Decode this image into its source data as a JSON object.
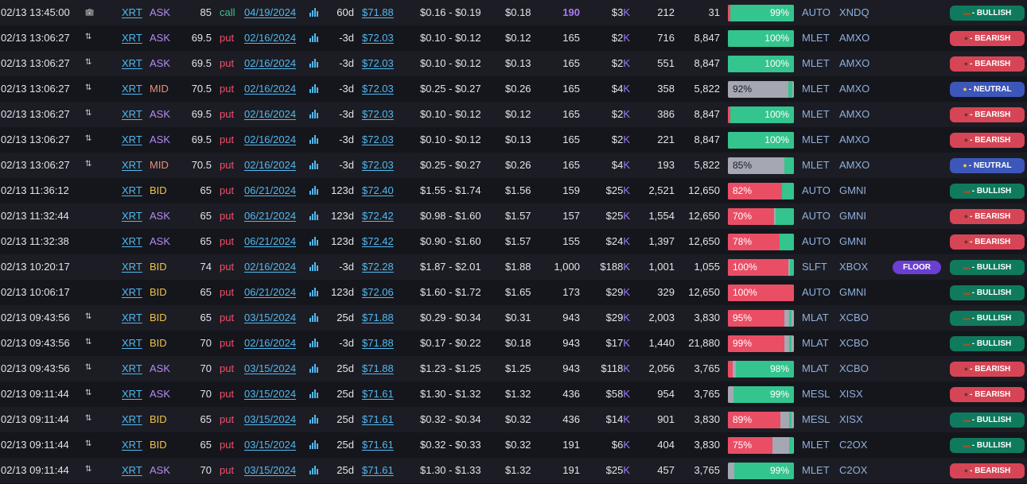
{
  "colors": {
    "bullish": "#0f7a5e",
    "bearish": "#d64556",
    "neutral": "#3c57b9",
    "bar_red": "#ea4e65",
    "bar_green": "#34c48e",
    "bar_gray": "#a5a7b2",
    "link": "#52b8f0",
    "ask": "#b58bf5",
    "bid": "#f0c24a",
    "mid": "#e8907a"
  },
  "icons": {
    "trade_icon": "arrows-updown-icon",
    "clock_icon": "briefcase-icon",
    "expiry_chart": "bar-chart-icon"
  },
  "rows": [
    {
      "time": "02/13 13:45:00",
      "icon": "briefcase",
      "symbol": "XRT",
      "side": "ASK",
      "strike": "85",
      "type": "call",
      "expiry": "04/19/2024",
      "dte": "60d",
      "spot": "$71.88",
      "bidask": "$0.16 - $0.19",
      "price": "$0.18",
      "size": "190",
      "size_hl": true,
      "prem": "$3",
      "prem_unit": "K",
      "vol": "212",
      "oi": "31",
      "bar": {
        "red": 0.04,
        "green": 0.96,
        "label": "99%",
        "label_side": "right"
      },
      "venue": "AUTO",
      "exch": "XNDQ",
      "tag": "",
      "sentiment": "bullish",
      "sentiment_label": "- BULLISH"
    },
    {
      "time": "02/13 13:06:27",
      "icon": "arrows",
      "symbol": "XRT",
      "side": "ASK",
      "strike": "69.5",
      "type": "put",
      "expiry": "02/16/2024",
      "dte": "-3d",
      "spot": "$72.03",
      "bidask": "$0.10 - $0.12",
      "price": "$0.12",
      "size": "165",
      "size_hl": false,
      "prem": "$2",
      "prem_unit": "K",
      "vol": "716",
      "oi": "8,847",
      "bar": {
        "red": 0,
        "green": 1,
        "label": "100%",
        "label_side": "right"
      },
      "venue": "MLET",
      "exch": "AMXO",
      "tag": "",
      "sentiment": "bearish",
      "sentiment_label": "- BEARISH"
    },
    {
      "time": "02/13 13:06:27",
      "icon": "arrows",
      "symbol": "XRT",
      "side": "ASK",
      "strike": "69.5",
      "type": "put",
      "expiry": "02/16/2024",
      "dte": "-3d",
      "spot": "$72.03",
      "bidask": "$0.10 - $0.12",
      "price": "$0.13",
      "size": "165",
      "size_hl": false,
      "prem": "$2",
      "prem_unit": "K",
      "vol": "551",
      "oi": "8,847",
      "bar": {
        "red": 0,
        "green": 1,
        "label": "100%",
        "label_side": "right"
      },
      "venue": "MLET",
      "exch": "AMXO",
      "tag": "",
      "sentiment": "bearish",
      "sentiment_label": "- BEARISH"
    },
    {
      "time": "02/13 13:06:27",
      "icon": "arrows",
      "symbol": "XRT",
      "side": "MID",
      "strike": "70.5",
      "type": "put",
      "expiry": "02/16/2024",
      "dte": "-3d",
      "spot": "$72.03",
      "bidask": "$0.25 - $0.27",
      "price": "$0.26",
      "size": "165",
      "size_hl": false,
      "prem": "$4",
      "prem_unit": "K",
      "vol": "358",
      "oi": "5,822",
      "bar": {
        "red": 0,
        "green": 0.06,
        "green_start": 0.91,
        "label": "92%",
        "label_side": "left",
        "dark": true
      },
      "venue": "MLET",
      "exch": "AMXO",
      "tag": "",
      "sentiment": "neutral",
      "sentiment_label": "- NEUTRAL"
    },
    {
      "time": "02/13 13:06:27",
      "icon": "arrows",
      "symbol": "XRT",
      "side": "ASK",
      "strike": "69.5",
      "type": "put",
      "expiry": "02/16/2024",
      "dte": "-3d",
      "spot": "$72.03",
      "bidask": "$0.10 - $0.12",
      "price": "$0.12",
      "size": "165",
      "size_hl": false,
      "prem": "$2",
      "prem_unit": "K",
      "vol": "386",
      "oi": "8,847",
      "bar": {
        "red": 0.04,
        "green": 0.96,
        "label": "100%",
        "label_side": "right"
      },
      "venue": "MLET",
      "exch": "AMXO",
      "tag": "",
      "sentiment": "bearish",
      "sentiment_label": "- BEARISH"
    },
    {
      "time": "02/13 13:06:27",
      "icon": "arrows",
      "symbol": "XRT",
      "side": "ASK",
      "strike": "69.5",
      "type": "put",
      "expiry": "02/16/2024",
      "dte": "-3d",
      "spot": "$72.03",
      "bidask": "$0.10 - $0.12",
      "price": "$0.13",
      "size": "165",
      "size_hl": false,
      "prem": "$2",
      "prem_unit": "K",
      "vol": "221",
      "oi": "8,847",
      "bar": {
        "red": 0,
        "green": 1,
        "label": "100%",
        "label_side": "right"
      },
      "venue": "MLET",
      "exch": "AMXO",
      "tag": "",
      "sentiment": "bearish",
      "sentiment_label": "- BEARISH"
    },
    {
      "time": "02/13 13:06:27",
      "icon": "arrows",
      "symbol": "XRT",
      "side": "MID",
      "strike": "70.5",
      "type": "put",
      "expiry": "02/16/2024",
      "dte": "-3d",
      "spot": "$72.03",
      "bidask": "$0.25 - $0.27",
      "price": "$0.26",
      "size": "165",
      "size_hl": false,
      "prem": "$4",
      "prem_unit": "K",
      "vol": "193",
      "oi": "5,822",
      "bar": {
        "red": 0,
        "green": 0.15,
        "green_start": 0.85,
        "label": "85%",
        "label_side": "left",
        "dark": true
      },
      "venue": "MLET",
      "exch": "AMXO",
      "tag": "",
      "sentiment": "neutral",
      "sentiment_label": "- NEUTRAL"
    },
    {
      "time": "02/13 11:36:12",
      "icon": "",
      "symbol": "XRT",
      "side": "BID",
      "strike": "65",
      "type": "put",
      "expiry": "06/21/2024",
      "dte": "123d",
      "spot": "$72.40",
      "bidask": "$1.55 - $1.74",
      "price": "$1.56",
      "size": "159",
      "size_hl": false,
      "prem": "$25",
      "prem_unit": "K",
      "vol": "2,521",
      "oi": "12,650",
      "bar": {
        "red": 0.82,
        "green": 0.18,
        "label": "82%",
        "label_side": "left"
      },
      "venue": "AUTO",
      "exch": "GMNI",
      "tag": "",
      "sentiment": "bullish",
      "sentiment_label": "- BULLISH"
    },
    {
      "time": "02/13 11:32:44",
      "icon": "",
      "symbol": "XRT",
      "side": "ASK",
      "strike": "65",
      "type": "put",
      "expiry": "06/21/2024",
      "dte": "123d",
      "spot": "$72.42",
      "bidask": "$0.98 - $1.60",
      "price": "$1.57",
      "size": "157",
      "size_hl": false,
      "prem": "$25",
      "prem_unit": "K",
      "vol": "1,554",
      "oi": "12,650",
      "bar": {
        "red": 0.7,
        "green": 0.28,
        "green_start": 0.72,
        "label": "70%",
        "label_side": "left"
      },
      "venue": "AUTO",
      "exch": "GMNI",
      "tag": "",
      "sentiment": "bearish",
      "sentiment_label": "- BEARISH"
    },
    {
      "time": "02/13 11:32:38",
      "icon": "",
      "symbol": "XRT",
      "side": "ASK",
      "strike": "65",
      "type": "put",
      "expiry": "06/21/2024",
      "dte": "123d",
      "spot": "$72.42",
      "bidask": "$0.90 - $1.60",
      "price": "$1.57",
      "size": "155",
      "size_hl": false,
      "prem": "$24",
      "prem_unit": "K",
      "vol": "1,397",
      "oi": "12,650",
      "bar": {
        "red": 0.78,
        "green": 0.22,
        "label": "78%",
        "label_side": "left"
      },
      "venue": "AUTO",
      "exch": "GMNI",
      "tag": "",
      "sentiment": "bearish",
      "sentiment_label": "- BEARISH"
    },
    {
      "time": "02/13 10:20:17",
      "icon": "",
      "symbol": "XRT",
      "side": "BID",
      "strike": "74",
      "type": "put",
      "expiry": "02/16/2024",
      "dte": "-3d",
      "spot": "$72.28",
      "bidask": "$1.87 - $2.01",
      "price": "$1.88",
      "size": "1,000",
      "size_hl": false,
      "prem": "$188",
      "prem_unit": "K",
      "vol": "1,001",
      "oi": "1,055",
      "bar": {
        "red": 0.92,
        "green": 0.06,
        "green_start": 0.94,
        "label": "100%",
        "label_side": "left"
      },
      "venue": "SLFT",
      "exch": "XBOX",
      "tag": "FLOOR",
      "sentiment": "bullish",
      "sentiment_label": "- BULLISH"
    },
    {
      "time": "02/13 10:06:17",
      "icon": "",
      "symbol": "XRT",
      "side": "BID",
      "strike": "65",
      "type": "put",
      "expiry": "06/21/2024",
      "dte": "123d",
      "spot": "$72.06",
      "bidask": "$1.60 - $1.72",
      "price": "$1.65",
      "size": "173",
      "size_hl": false,
      "prem": "$29",
      "prem_unit": "K",
      "vol": "329",
      "oi": "12,650",
      "bar": {
        "red": 1,
        "green": 0,
        "label": "100%",
        "label_side": "left"
      },
      "venue": "AUTO",
      "exch": "GMNI",
      "tag": "",
      "sentiment": "bullish",
      "sentiment_label": "- BULLISH"
    },
    {
      "time": "02/13 09:43:56",
      "icon": "arrows",
      "symbol": "XRT",
      "side": "BID",
      "strike": "65",
      "type": "put",
      "expiry": "03/15/2024",
      "dte": "25d",
      "spot": "$71.88",
      "bidask": "$0.29 - $0.34",
      "price": "$0.31",
      "size": "943",
      "size_hl": false,
      "prem": "$29",
      "prem_unit": "K",
      "vol": "2,003",
      "oi": "3,830",
      "bar": {
        "red": 0.86,
        "green": 0.04,
        "green_start": 0.93,
        "label": "95%",
        "label_side": "left"
      },
      "venue": "MLAT",
      "exch": "XCBO",
      "tag": "",
      "sentiment": "bullish",
      "sentiment_label": "- BULLISH"
    },
    {
      "time": "02/13 09:43:56",
      "icon": "arrows",
      "symbol": "XRT",
      "side": "BID",
      "strike": "70",
      "type": "put",
      "expiry": "02/16/2024",
      "dte": "-3d",
      "spot": "$71.88",
      "bidask": "$0.17 - $0.22",
      "price": "$0.18",
      "size": "943",
      "size_hl": false,
      "prem": "$17",
      "prem_unit": "K",
      "vol": "1,440",
      "oi": "21,880",
      "bar": {
        "red": 0.86,
        "green": 0.04,
        "green_start": 0.93,
        "label": "99%",
        "label_side": "left"
      },
      "venue": "MLAT",
      "exch": "XCBO",
      "tag": "",
      "sentiment": "bullish",
      "sentiment_label": "- BULLISH"
    },
    {
      "time": "02/13 09:43:56",
      "icon": "arrows",
      "symbol": "XRT",
      "side": "ASK",
      "strike": "70",
      "type": "put",
      "expiry": "03/15/2024",
      "dte": "25d",
      "spot": "$71.88",
      "bidask": "$1.23 - $1.25",
      "price": "$1.25",
      "size": "943",
      "size_hl": false,
      "prem": "$118",
      "prem_unit": "K",
      "vol": "2,056",
      "oi": "3,765",
      "bar": {
        "red": 0.07,
        "green": 0.88,
        "green_start": 0.12,
        "label": "98%",
        "label_side": "right"
      },
      "venue": "MLAT",
      "exch": "XCBO",
      "tag": "",
      "sentiment": "bearish",
      "sentiment_label": "- BEARISH"
    },
    {
      "time": "02/13 09:11:44",
      "icon": "arrows",
      "symbol": "XRT",
      "side": "ASK",
      "strike": "70",
      "type": "put",
      "expiry": "03/15/2024",
      "dte": "25d",
      "spot": "$71.61",
      "bidask": "$1.30 - $1.32",
      "price": "$1.32",
      "size": "436",
      "size_hl": false,
      "prem": "$58",
      "prem_unit": "K",
      "vol": "954",
      "oi": "3,765",
      "bar": {
        "red": 0,
        "green": 0.92,
        "green_start": 0.08,
        "label": "99%",
        "label_side": "right"
      },
      "venue": "MESL",
      "exch": "XISX",
      "tag": "",
      "sentiment": "bearish",
      "sentiment_label": "- BEARISH"
    },
    {
      "time": "02/13 09:11:44",
      "icon": "arrows",
      "symbol": "XRT",
      "side": "BID",
      "strike": "65",
      "type": "put",
      "expiry": "03/15/2024",
      "dte": "25d",
      "spot": "$71.61",
      "bidask": "$0.32 - $0.34",
      "price": "$0.32",
      "size": "436",
      "size_hl": false,
      "prem": "$14",
      "prem_unit": "K",
      "vol": "901",
      "oi": "3,830",
      "bar": {
        "red": 0.8,
        "green": 0.04,
        "green_start": 0.93,
        "label": "89%",
        "label_side": "left"
      },
      "venue": "MESL",
      "exch": "XISX",
      "tag": "",
      "sentiment": "bullish",
      "sentiment_label": "- BULLISH"
    },
    {
      "time": "02/13 09:11:44",
      "icon": "arrows",
      "symbol": "XRT",
      "side": "BID",
      "strike": "65",
      "type": "put",
      "expiry": "03/15/2024",
      "dte": "25d",
      "spot": "$71.61",
      "bidask": "$0.32 - $0.33",
      "price": "$0.32",
      "size": "191",
      "size_hl": false,
      "prem": "$6",
      "prem_unit": "K",
      "vol": "404",
      "oi": "3,830",
      "bar": {
        "red": 0.68,
        "green": 0.06,
        "green_start": 0.93,
        "label": "75%",
        "label_side": "left"
      },
      "venue": "MLET",
      "exch": "C2OX",
      "tag": "",
      "sentiment": "bullish",
      "sentiment_label": "- BULLISH"
    },
    {
      "time": "02/13 09:11:44",
      "icon": "arrows",
      "symbol": "XRT",
      "side": "ASK",
      "strike": "70",
      "type": "put",
      "expiry": "03/15/2024",
      "dte": "25d",
      "spot": "$71.61",
      "bidask": "$1.30 - $1.33",
      "price": "$1.32",
      "size": "191",
      "size_hl": false,
      "prem": "$25",
      "prem_unit": "K",
      "vol": "457",
      "oi": "3,765",
      "bar": {
        "red": 0,
        "green": 0.9,
        "green_start": 0.1,
        "label": "99%",
        "label_side": "right"
      },
      "venue": "MLET",
      "exch": "C2OX",
      "tag": "",
      "sentiment": "bearish",
      "sentiment_label": "- BEARISH"
    }
  ]
}
